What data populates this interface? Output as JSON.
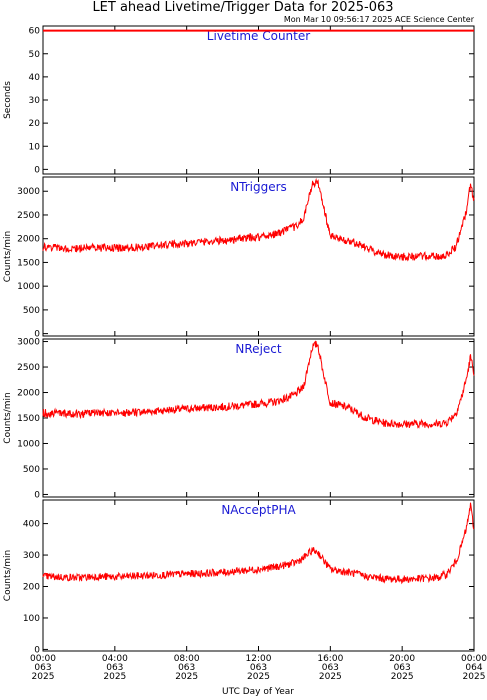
{
  "header": {
    "title": "LET ahead Livetime/Trigger Data for 2025-063",
    "timestamp": "Mon Mar 10 09:56:17 2025 ACE Science Center"
  },
  "colors": {
    "series": "#ff0000",
    "panel_title": "#1a1ad4",
    "axis": "#000000"
  },
  "x_axis": {
    "label": "UTC Day of Year",
    "range_hours": [
      0,
      24
    ],
    "ticks": [
      {
        "hours": 0,
        "time": "00:00",
        "doy": "063",
        "year": "2025"
      },
      {
        "hours": 4,
        "time": "04:00",
        "doy": "063",
        "year": "2025"
      },
      {
        "hours": 8,
        "time": "08:00",
        "doy": "063",
        "year": "2025"
      },
      {
        "hours": 12,
        "time": "12:00",
        "doy": "063",
        "year": "2025"
      },
      {
        "hours": 16,
        "time": "16:00",
        "doy": "063",
        "year": "2025"
      },
      {
        "hours": 20,
        "time": "20:00",
        "doy": "063",
        "year": "2025"
      },
      {
        "hours": 24,
        "time": "00:00",
        "doy": "064",
        "year": "2025"
      }
    ]
  },
  "chart_data": [
    {
      "type": "line",
      "title": "Livetime Counter",
      "ylabel": "Seconds",
      "ylim": [
        -2,
        62
      ],
      "yticks": [
        0,
        10,
        20,
        30,
        40,
        50,
        60
      ],
      "x": [
        0,
        24
      ],
      "series": [
        {
          "values": [
            60,
            60
          ]
        }
      ]
    },
    {
      "type": "line",
      "title": "NTriggers",
      "ylabel": "Counts/min",
      "ylim": [
        -50,
        3300
      ],
      "yticks": [
        0,
        500,
        1000,
        1500,
        2000,
        2500,
        3000
      ],
      "x": [
        0,
        1,
        2,
        3,
        4,
        5,
        6,
        7,
        8,
        9,
        10,
        11,
        12,
        13,
        14,
        14.5,
        15,
        15.3,
        15.6,
        16,
        16.5,
        17,
        17.5,
        18,
        19,
        20,
        21,
        22,
        22.5,
        23,
        23.3,
        23.6,
        23.8,
        24
      ],
      "series": [
        {
          "values": [
            1820,
            1800,
            1790,
            1810,
            1800,
            1820,
            1840,
            1880,
            1900,
            1940,
            1960,
            2000,
            2040,
            2100,
            2250,
            2400,
            3150,
            3200,
            2700,
            2050,
            2000,
            1950,
            1900,
            1800,
            1660,
            1620,
            1630,
            1620,
            1650,
            1850,
            2200,
            2600,
            3150,
            2800
          ]
        }
      ]
    },
    {
      "type": "line",
      "title": "NReject",
      "ylabel": "Counts/min",
      "ylim": [
        -50,
        3050
      ],
      "yticks": [
        0,
        500,
        1000,
        1500,
        2000,
        2500,
        3000
      ],
      "x": [
        0,
        1,
        2,
        3,
        4,
        5,
        6,
        7,
        8,
        9,
        10,
        11,
        12,
        13,
        14,
        14.5,
        15,
        15.3,
        15.6,
        16,
        16.5,
        17,
        17.5,
        18,
        19,
        20,
        21,
        22,
        22.5,
        23,
        23.3,
        23.6,
        23.8,
        24
      ],
      "series": [
        {
          "values": [
            1600,
            1590,
            1580,
            1600,
            1590,
            1610,
            1630,
            1660,
            1680,
            1700,
            1720,
            1740,
            1780,
            1820,
            1950,
            2100,
            2900,
            2950,
            2400,
            1800,
            1750,
            1700,
            1600,
            1500,
            1400,
            1380,
            1390,
            1380,
            1420,
            1600,
            1900,
            2300,
            2700,
            2400
          ]
        }
      ]
    },
    {
      "type": "line",
      "title": "NAcceptPHA",
      "ylabel": "Counts/min",
      "ylim": [
        -5,
        475
      ],
      "yticks": [
        0,
        100,
        200,
        300,
        400
      ],
      "x": [
        0,
        1,
        2,
        3,
        4,
        5,
        6,
        7,
        8,
        9,
        10,
        11,
        12,
        13,
        14,
        14.5,
        15,
        15.3,
        15.6,
        16,
        16.5,
        17,
        17.5,
        18,
        19,
        20,
        21,
        22,
        22.5,
        23,
        23.3,
        23.6,
        23.8,
        24
      ],
      "series": [
        {
          "values": [
            232,
            230,
            228,
            232,
            230,
            233,
            235,
            238,
            240,
            242,
            245,
            250,
            255,
            262,
            275,
            290,
            315,
            310,
            285,
            255,
            250,
            245,
            240,
            232,
            225,
            223,
            225,
            228,
            240,
            280,
            330,
            390,
            460,
            380
          ]
        }
      ]
    }
  ]
}
